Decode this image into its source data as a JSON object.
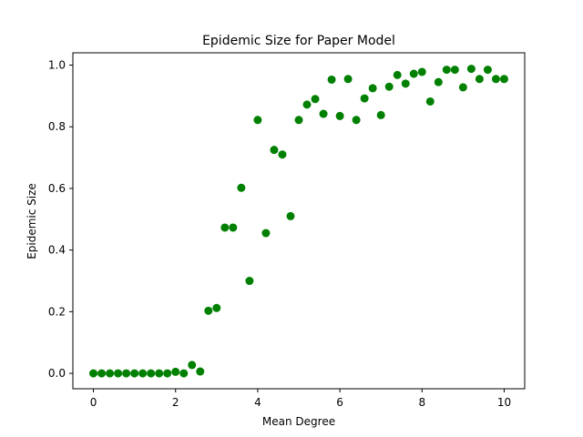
{
  "chart_data": {
    "type": "scatter",
    "title": "Epidemic Size for Paper Model",
    "xlabel": "Mean Degree",
    "ylabel": "Epidemic Size",
    "xlim": [
      -0.5,
      10.5
    ],
    "ylim": [
      -0.05,
      1.04
    ],
    "xticks": [
      0,
      2,
      4,
      6,
      8,
      10
    ],
    "xtick_labels": [
      "0",
      "2",
      "4",
      "6",
      "8",
      "10"
    ],
    "yticks": [
      0.0,
      0.2,
      0.4,
      0.6,
      0.8,
      1.0
    ],
    "ytick_labels": [
      "0.0",
      "0.2",
      "0.4",
      "0.6",
      "0.8",
      "1.0"
    ],
    "grid": false,
    "legend": "none",
    "marker_color": "#008000",
    "series": [
      {
        "x": [
          0.0,
          0.2,
          0.4,
          0.6,
          0.8,
          1.0,
          1.2,
          1.4,
          1.6,
          1.8,
          2.0,
          2.2,
          2.4,
          2.6,
          2.8,
          3.0,
          3.2,
          3.4,
          3.6,
          3.8,
          4.0,
          4.2,
          4.4,
          4.6,
          4.8,
          5.0,
          5.2,
          5.4,
          5.6,
          5.8,
          6.0,
          6.2,
          6.4,
          6.6,
          6.8,
          7.0,
          7.2,
          7.4,
          7.6,
          7.8,
          8.0,
          8.2,
          8.4,
          8.6,
          8.8,
          9.0,
          9.2,
          9.4,
          9.6,
          9.8,
          10.0
        ],
        "values": [
          0.0,
          0.0,
          0.0,
          0.0,
          0.0,
          0.0,
          0.0,
          0.0,
          0.0,
          0.0,
          0.005,
          0.0,
          0.027,
          0.006,
          0.203,
          0.212,
          0.473,
          0.473,
          0.602,
          0.3,
          0.822,
          0.455,
          0.725,
          0.71,
          0.51,
          0.822,
          0.872,
          0.89,
          0.842,
          0.953,
          0.835,
          0.955,
          0.822,
          0.892,
          0.925,
          0.838,
          0.93,
          0.968,
          0.94,
          0.972,
          0.978,
          0.882,
          0.945,
          0.985,
          0.985,
          0.928,
          0.988,
          0.955,
          0.985,
          0.955,
          0.955
        ]
      }
    ]
  }
}
